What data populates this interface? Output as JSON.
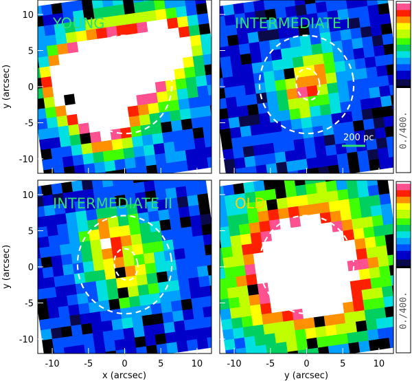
{
  "chart_data": {
    "type": "heatmap",
    "colorbar": {
      "label": "0./400.",
      "colors": [
        "#000000",
        "#0a0a4a",
        "#0000c8",
        "#0050ff",
        "#00a0ff",
        "#00e0e0",
        "#00d060",
        "#40ff00",
        "#c0ff00",
        "#ffff00",
        "#ff9000",
        "#ff2000",
        "#ff5090",
        "#ffffff"
      ]
    },
    "xlim": [
      -12,
      12
    ],
    "ylim": [
      -12,
      12
    ],
    "scale_bar": "200 pc",
    "panels": [
      {
        "title": "YOUNG",
        "title_color": "#30e070",
        "population": "young",
        "hotspots": [
          [
            -5,
            0.5,
            3.2,
            1.0
          ],
          [
            -6.5,
            2,
            2.2,
            0.8
          ],
          [
            -3,
            -5.5,
            2.5,
            0.7
          ],
          [
            5,
            5,
            2.5,
            0.8
          ],
          [
            7,
            4.5,
            2.0,
            0.7
          ],
          [
            -1.5,
            5,
            2.8,
            0.5
          ],
          [
            3,
            0,
            3,
            0.5
          ],
          [
            0,
            2.5,
            6,
            0.35
          ]
        ]
      },
      {
        "title": "INTERMEDIATE I",
        "title_color": "#30e070",
        "population": "intermediate1",
        "hotspots": [
          [
            0,
            0,
            3,
            0.35
          ],
          [
            2,
            3,
            2.5,
            0.25
          ],
          [
            -1,
            -1,
            2,
            0.3
          ]
        ]
      },
      {
        "title": "INTERMEDIATE II",
        "title_color": "#30e070",
        "population": "intermediate2",
        "hotspots": [
          [
            0,
            2.5,
            4,
            0.35
          ],
          [
            -2,
            4,
            2,
            0.4
          ],
          [
            1,
            -2,
            3,
            0.25
          ]
        ]
      },
      {
        "title": "OLD",
        "title_color": "#ffd000",
        "population": "old",
        "hotspots": [
          [
            0,
            0,
            6.5,
            1.25
          ]
        ]
      }
    ],
    "x_ticks": [
      "-10",
      "-5",
      "0",
      "5",
      "10"
    ],
    "y_ticks": [
      "10",
      "5",
      "0",
      "-5",
      "-10"
    ],
    "ylabel": "y (arcsec)",
    "xlabel_left": "x (arcsec)",
    "xlabel_right": "y (arcsec)"
  }
}
